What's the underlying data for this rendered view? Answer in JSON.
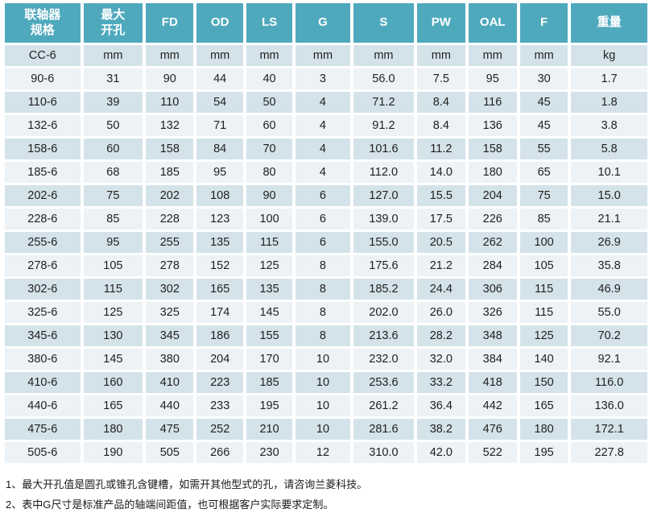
{
  "colors": {
    "header_bg": "#4FA9BD",
    "row_dark": "#D4E3EA",
    "row_light": "#ECF2F6",
    "header_text": "#FFFFFF",
    "cell_text": "#1F1F1F"
  },
  "table": {
    "headers": [
      "联轴器\n规格",
      "最大\n开孔",
      "FD",
      "OD",
      "LS",
      "G",
      "S",
      "PW",
      "OAL",
      "F",
      "重量"
    ],
    "rows": [
      [
        "CC-6",
        "mm",
        "mm",
        "mm",
        "mm",
        "mm",
        "mm",
        "mm",
        "mm",
        "mm",
        "kg"
      ],
      [
        "90-6",
        "31",
        "90",
        "44",
        "40",
        "3",
        "56.0",
        "7.5",
        "95",
        "30",
        "1.7"
      ],
      [
        "110-6",
        "39",
        "110",
        "54",
        "50",
        "4",
        "71.2",
        "8.4",
        "116",
        "45",
        "1.8"
      ],
      [
        "132-6",
        "50",
        "132",
        "71",
        "60",
        "4",
        "91.2",
        "8.4",
        "136",
        "45",
        "3.8"
      ],
      [
        "158-6",
        "60",
        "158",
        "84",
        "70",
        "4",
        "101.6",
        "11.2",
        "158",
        "55",
        "5.8"
      ],
      [
        "185-6",
        "68",
        "185",
        "95",
        "80",
        "4",
        "112.0",
        "14.0",
        "180",
        "65",
        "10.1"
      ],
      [
        "202-6",
        "75",
        "202",
        "108",
        "90",
        "6",
        "127.0",
        "15.5",
        "204",
        "75",
        "15.0"
      ],
      [
        "228-6",
        "85",
        "228",
        "123",
        "100",
        "6",
        "139.0",
        "17.5",
        "226",
        "85",
        "21.1"
      ],
      [
        "255-6",
        "95",
        "255",
        "135",
        "115",
        "6",
        "155.0",
        "20.5",
        "262",
        "100",
        "26.9"
      ],
      [
        "278-6",
        "105",
        "278",
        "152",
        "125",
        "8",
        "175.6",
        "21.2",
        "284",
        "105",
        "35.8"
      ],
      [
        "302-6",
        "115",
        "302",
        "165",
        "135",
        "8",
        "185.2",
        "24.4",
        "306",
        "115",
        "46.9"
      ],
      [
        "325-6",
        "125",
        "325",
        "174",
        "145",
        "8",
        "202.0",
        "26.0",
        "326",
        "115",
        "55.0"
      ],
      [
        "345-6",
        "130",
        "345",
        "186",
        "155",
        "8",
        "213.6",
        "28.2",
        "348",
        "125",
        "70.2"
      ],
      [
        "380-6",
        "145",
        "380",
        "204",
        "170",
        "10",
        "232.0",
        "32.0",
        "384",
        "140",
        "92.1"
      ],
      [
        "410-6",
        "160",
        "410",
        "223",
        "185",
        "10",
        "253.6",
        "33.2",
        "418",
        "150",
        "116.0"
      ],
      [
        "440-6",
        "165",
        "440",
        "233",
        "195",
        "10",
        "261.2",
        "36.4",
        "442",
        "165",
        "136.0"
      ],
      [
        "475-6",
        "180",
        "475",
        "252",
        "210",
        "10",
        "281.6",
        "38.2",
        "476",
        "180",
        "172.1"
      ],
      [
        "505-6",
        "190",
        "505",
        "266",
        "230",
        "12",
        "310.0",
        "42.0",
        "522",
        "195",
        "227.8"
      ]
    ]
  },
  "footnotes": [
    "1、最大开孔值是圆孔或锥孔含键槽，如需开其他型式的孔，请咨询兰菱科技。",
    "2、表中G尺寸是标准产品的轴端间距值，也可根据客户实际要求定制。"
  ]
}
